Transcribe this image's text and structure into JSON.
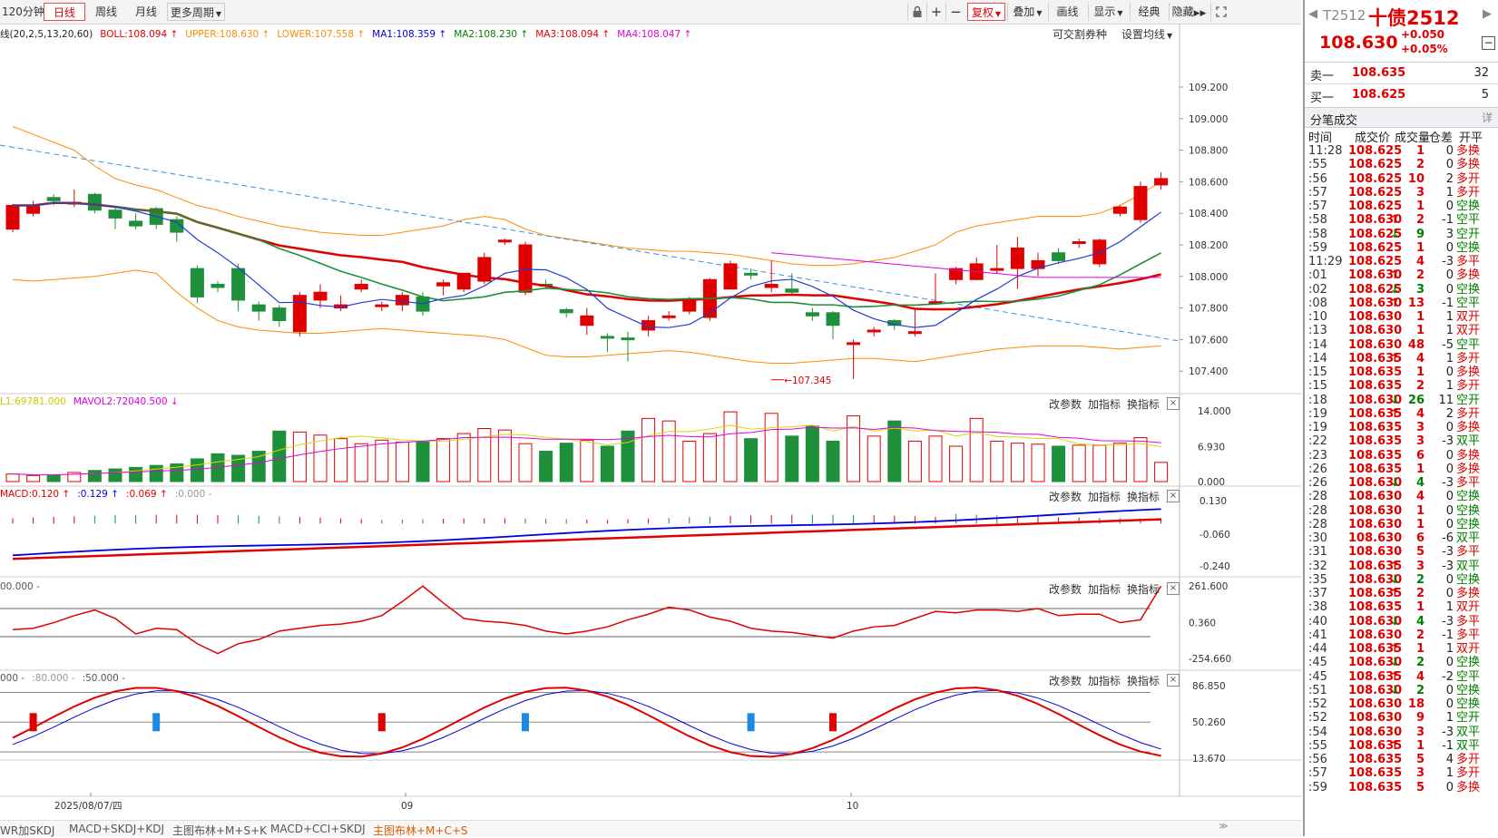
{
  "toolbar": {
    "periods": [
      "120分钟",
      "日线",
      "周线",
      "月线",
      "更多周期"
    ],
    "active_period": "日线",
    "buttons": [
      "复权",
      "叠加",
      "画线",
      "显示",
      "经典",
      "隐藏"
    ],
    "icons": [
      "lock-icon",
      "plus-icon",
      "minus-icon"
    ]
  },
  "main_legend": [
    {
      "text": "线(20,2,5,13,20,60)",
      "color": "#222"
    },
    {
      "text": "BOLL:108.094",
      "color": "#e00000",
      "arrow": "↑"
    },
    {
      "text": "UPPER:108.630",
      "color": "#ff8c00",
      "arrow": "↑"
    },
    {
      "text": "LOWER:107.558",
      "color": "#ff8c00",
      "arrow": "↑"
    },
    {
      "text": "MA1:108.359",
      "color": "#0000e0",
      "arrow": "↑"
    },
    {
      "text": "MA2:108.230",
      "color": "#008000",
      "arrow": "↑"
    },
    {
      "text": "MA3:108.094",
      "color": "#e00000",
      "arrow": "↑"
    },
    {
      "text": "MA4:108.047",
      "color": "#e000e0",
      "arrow": "↑"
    }
  ],
  "main_tools": [
    "可交割券种",
    "设置均线"
  ],
  "price_axis": [
    "109.200",
    "109.000",
    "108.800",
    "108.600",
    "108.400",
    "108.200",
    "108.000",
    "107.800",
    "107.600",
    "107.400"
  ],
  "min_label": "107.345",
  "vol_legend": [
    {
      "text": "L1:69781.000",
      "color": "#c8c800"
    },
    {
      "text": "MAVOL2:72040.500",
      "color": "#e000e0",
      "arrow": "↓"
    }
  ],
  "vol_axis": [
    "14.000",
    "6.930",
    "0.000"
  ],
  "macd_legend": [
    {
      "text": "MACD:0.120",
      "color": "#e00000",
      "arrow": "↑"
    },
    {
      "text": ":0.129",
      "color": "#0000e0",
      "arrow": "↑"
    },
    {
      "text": ":0.069",
      "color": "#e00000",
      "arrow": "↑"
    },
    {
      "text": ":0.000",
      "color": "#999",
      "arrow": "-"
    }
  ],
  "macd_axis": [
    "0.130",
    "-0.060",
    "-0.240"
  ],
  "cci_legend": [
    {
      "text": "00.000",
      "color": "#555",
      "arrow": "-"
    }
  ],
  "cci_axis": [
    "261.600",
    "0.360",
    "-254.660"
  ],
  "kdj_legend": [
    {
      "text": "000",
      "color": "#555",
      "arrow": "-"
    },
    {
      "text": ":80.000",
      "color": "#999",
      "arrow": "-"
    },
    {
      "text": ":50.000",
      "color": "#555",
      "arrow": "-"
    }
  ],
  "kdj_axis": [
    "86.850",
    "50.260",
    "13.670"
  ],
  "panel_tools": [
    "改参数",
    "加指标",
    "换指标"
  ],
  "date_axis": [
    "2025/08/07/四",
    "09",
    "10"
  ],
  "bottom_tabs": [
    "WR加SKDJ",
    "MACD+SKDJ+KDJ",
    "主图布林+M+S+K",
    "MACD+CCI+SKDJ",
    "主图布林+M+C+S"
  ],
  "active_bottom_tab": "主图布林+M+C+S",
  "quote": {
    "code": "T2512",
    "name": "十债2512",
    "price": "108.630",
    "change": "+0.050",
    "change_pct": "+0.05%",
    "ask_label": "卖一",
    "ask_price": "108.635",
    "ask_vol": "32",
    "bid_label": "买一",
    "bid_price": "108.625",
    "bid_vol": "5",
    "ticks_title": "分笔成交",
    "detail_label": "详",
    "headers": [
      "时间",
      "成交价",
      "成交量",
      "仓差",
      "开平"
    ]
  },
  "ticks": [
    [
      "11:28",
      "108.625",
      "",
      "1",
      "0",
      "多换"
    ],
    [
      ":55",
      "108.625",
      "",
      "2",
      "0",
      "多换"
    ],
    [
      ":56",
      "108.625",
      "",
      "10",
      "2",
      "多开"
    ],
    [
      ":57",
      "108.625",
      "",
      "3",
      "1",
      "多开"
    ],
    [
      ":57",
      "108.625",
      "",
      "1",
      "0",
      "空换"
    ],
    [
      ":58",
      "108.630",
      "up",
      "2",
      "-1",
      "空平"
    ],
    [
      ":58",
      "108.625",
      "down",
      "9",
      "3",
      "空开"
    ],
    [
      ":59",
      "108.625",
      "",
      "1",
      "0",
      "空换"
    ],
    [
      "11:29",
      "108.625",
      "",
      "4",
      "-3",
      "多平"
    ],
    [
      ":01",
      "108.630",
      "up",
      "2",
      "0",
      "多换"
    ],
    [
      ":02",
      "108.625",
      "down",
      "3",
      "0",
      "空换"
    ],
    [
      ":08",
      "108.630",
      "up",
      "13",
      "-1",
      "空平"
    ],
    [
      ":10",
      "108.630",
      "",
      "1",
      "1",
      "双开"
    ],
    [
      ":13",
      "108.630",
      "",
      "1",
      "1",
      "双开"
    ],
    [
      ":14",
      "108.630",
      "",
      "48",
      "-5",
      "空平"
    ],
    [
      ":14",
      "108.635",
      "up",
      "4",
      "1",
      "多开"
    ],
    [
      ":15",
      "108.635",
      "",
      "1",
      "0",
      "多换"
    ],
    [
      ":15",
      "108.635",
      "",
      "2",
      "1",
      "多开"
    ],
    [
      ":18",
      "108.630",
      "down",
      "26",
      "11",
      "空开"
    ],
    [
      ":19",
      "108.635",
      "up",
      "4",
      "2",
      "多开"
    ],
    [
      ":19",
      "108.635",
      "",
      "3",
      "0",
      "多换"
    ],
    [
      ":22",
      "108.635",
      "",
      "3",
      "-3",
      "双平"
    ],
    [
      ":23",
      "108.635",
      "",
      "6",
      "0",
      "多换"
    ],
    [
      ":26",
      "108.635",
      "",
      "1",
      "0",
      "多换"
    ],
    [
      ":26",
      "108.630",
      "down",
      "4",
      "-3",
      "多平"
    ],
    [
      ":28",
      "108.630",
      "",
      "4",
      "0",
      "空换"
    ],
    [
      ":28",
      "108.630",
      "",
      "1",
      "0",
      "空换"
    ],
    [
      ":28",
      "108.630",
      "",
      "1",
      "0",
      "空换"
    ],
    [
      ":30",
      "108.630",
      "",
      "6",
      "-6",
      "双平"
    ],
    [
      ":31",
      "108.630",
      "",
      "5",
      "-3",
      "多平"
    ],
    [
      ":32",
      "108.635",
      "up",
      "3",
      "-3",
      "双平"
    ],
    [
      ":35",
      "108.630",
      "down",
      "2",
      "0",
      "空换"
    ],
    [
      ":37",
      "108.635",
      "up",
      "2",
      "0",
      "多换"
    ],
    [
      ":38",
      "108.635",
      "",
      "1",
      "1",
      "双开"
    ],
    [
      ":40",
      "108.630",
      "down",
      "4",
      "-3",
      "多平"
    ],
    [
      ":41",
      "108.630",
      "",
      "2",
      "-1",
      "多平"
    ],
    [
      ":44",
      "108.635",
      "up",
      "1",
      "1",
      "双开"
    ],
    [
      ":45",
      "108.630",
      "down",
      "2",
      "0",
      "空换"
    ],
    [
      ":45",
      "108.635",
      "up",
      "4",
      "-2",
      "空平"
    ],
    [
      ":51",
      "108.630",
      "down",
      "2",
      "0",
      "空换"
    ],
    [
      ":52",
      "108.630",
      "",
      "18",
      "0",
      "空换"
    ],
    [
      ":52",
      "108.630",
      "",
      "9",
      "1",
      "空开"
    ],
    [
      ":54",
      "108.630",
      "",
      "3",
      "-3",
      "双平"
    ],
    [
      ":55",
      "108.635",
      "up",
      "1",
      "-1",
      "双平"
    ],
    [
      ":56",
      "108.635",
      "",
      "5",
      "4",
      "多开"
    ],
    [
      ":57",
      "108.635",
      "",
      "3",
      "1",
      "多开"
    ],
    [
      ":59",
      "108.635",
      "",
      "5",
      "0",
      "多换"
    ]
  ],
  "colors": {
    "up": "#e00000",
    "down": "#008000",
    "neutral": "#000080"
  }
}
